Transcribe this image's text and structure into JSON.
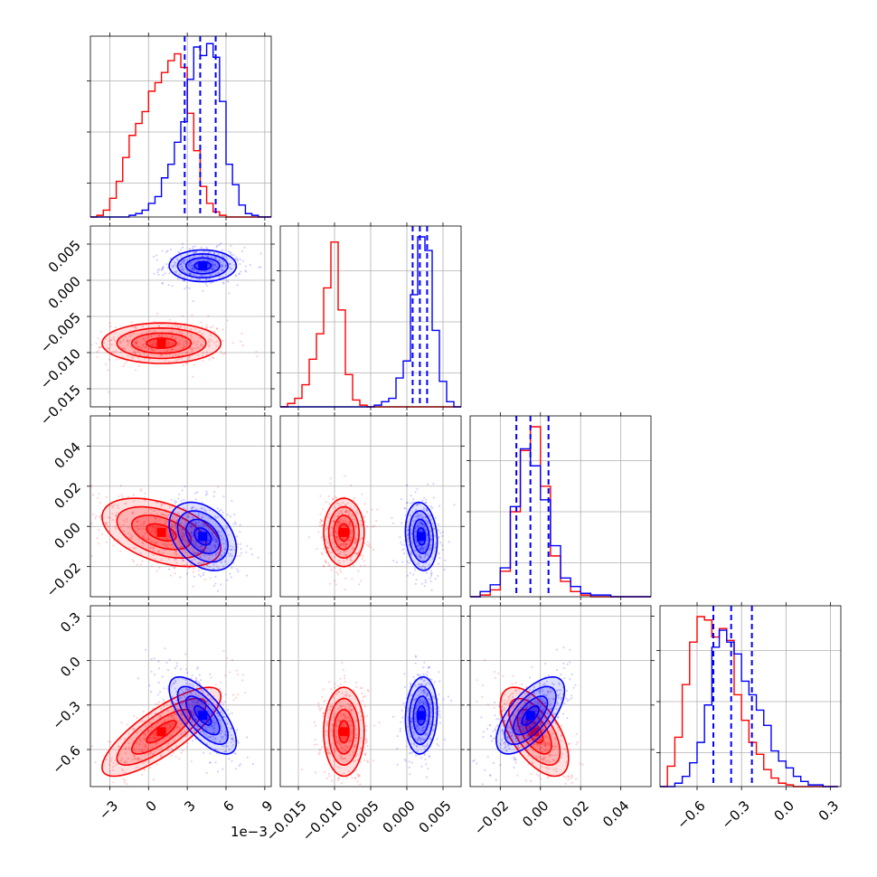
{
  "chart_data": {
    "type": "corner",
    "title": "",
    "parameters": [
      "",
      "",
      "",
      ""
    ],
    "series": [
      {
        "color": "#ff0000"
      },
      {
        "color": "#0000ff"
      }
    ],
    "axes": [
      {
        "range": [
          -4.5,
          9.5
        ],
        "ticks": [
          -3,
          0,
          3,
          6,
          9
        ],
        "tick_labels": [
          "−3",
          "0",
          "3",
          "6",
          "9"
        ],
        "offset_text": "1e−3"
      },
      {
        "range": [
          -0.0175,
          0.0075
        ],
        "ticks": [
          -0.015,
          -0.01,
          -0.005,
          0.0,
          0.005
        ],
        "tick_labels": [
          "−0.015",
          "−0.010",
          "−0.005",
          "0.000",
          "0.005"
        ]
      },
      {
        "range": [
          -0.035,
          0.055
        ],
        "ticks": [
          -0.02,
          0.0,
          0.02,
          0.04
        ],
        "tick_labels": [
          "−0.02",
          "0.00",
          "0.02",
          "0.04"
        ]
      },
      {
        "range": [
          -0.85,
          0.37
        ],
        "ticks": [
          -0.6,
          -0.3,
          0.0,
          0.3
        ],
        "tick_labels": [
          "−0.6",
          "−0.3",
          "0.0",
          "0.3"
        ]
      }
    ],
    "quantiles": [
      [
        2.8,
        4.0,
        5.2
      ],
      [
        0.0008,
        0.0018,
        0.0028
      ],
      [
        -0.012,
        -0.005,
        0.004
      ],
      [
        -0.49,
        -0.37,
        -0.23
      ]
    ],
    "histograms": [
      {
        "red": {
          "edges": [
            -4.5,
            -4,
            -3.5,
            -3,
            -2.5,
            -2,
            -1.5,
            -1,
            -0.5,
            0,
            0.5,
            1,
            1.5,
            2,
            2.5,
            3,
            3.5,
            4,
            4.5,
            5,
            5.5,
            6,
            6.5,
            7,
            7.5,
            8,
            8.5,
            9,
            9.5
          ],
          "counts": [
            0,
            0.01,
            0.04,
            0.11,
            0.21,
            0.35,
            0.48,
            0.55,
            0.62,
            0.74,
            0.79,
            0.85,
            0.92,
            0.96,
            0.88,
            0.61,
            0.39,
            0.18,
            0.08,
            0.03,
            0.01,
            0,
            0,
            0,
            0,
            0,
            0,
            0
          ]
        },
        "blue": {
          "edges": [
            -4.5,
            -4,
            -3.5,
            -3,
            -2.5,
            -2,
            -1.5,
            -1,
            -0.5,
            0,
            0.5,
            1,
            1.5,
            2,
            2.5,
            3,
            3.5,
            4,
            4.5,
            5,
            5.5,
            6,
            6.5,
            7,
            7.5,
            8,
            8.5,
            9,
            9.5
          ],
          "counts": [
            0,
            0,
            0,
            0,
            0,
            0,
            0.01,
            0.02,
            0.04,
            0.08,
            0.12,
            0.23,
            0.31,
            0.44,
            0.56,
            0.81,
            1.0,
            0.95,
            1.02,
            0.94,
            0.68,
            0.31,
            0.19,
            0.07,
            0.02,
            0.01,
            0,
            0
          ]
        }
      },
      {
        "red": {
          "edges": [
            -0.0175,
            -0.0165,
            -0.0155,
            -0.0145,
            -0.0135,
            -0.0125,
            -0.0115,
            -0.0105,
            -0.0095,
            -0.0085,
            -0.0075,
            -0.0065,
            -0.0055,
            -0.0045,
            -0.0035,
            -0.0025,
            -0.0015,
            -0.0005,
            0.0005,
            0.0015,
            0.0025,
            0.0035,
            0.0045,
            0.0055,
            0.0065,
            0.0075
          ],
          "counts": [
            0,
            0.02,
            0.05,
            0.13,
            0.28,
            0.43,
            0.7,
            0.97,
            0.57,
            0.19,
            0.04,
            0.01,
            0,
            0,
            0,
            0,
            0,
            0,
            0,
            0,
            0,
            0,
            0,
            0,
            0
          ]
        },
        "blue": {
          "edges": [
            -0.0175,
            -0.0165,
            -0.0155,
            -0.0145,
            -0.0135,
            -0.0125,
            -0.0115,
            -0.0105,
            -0.0095,
            -0.0085,
            -0.0075,
            -0.0065,
            -0.0055,
            -0.0045,
            -0.0035,
            -0.0025,
            -0.0015,
            -0.0005,
            0.0005,
            0.0015,
            0.0025,
            0.0035,
            0.0045,
            0.0055,
            0.0065,
            0.0075
          ],
          "counts": [
            0,
            0,
            0,
            0,
            0,
            0,
            0,
            0,
            0,
            0,
            0,
            0,
            0,
            0.01,
            0.03,
            0.05,
            0.17,
            0.27,
            0.66,
            1.0,
            0.92,
            0.45,
            0.15,
            0.03,
            0
          ]
        }
      },
      {
        "red": {
          "edges": [
            -0.035,
            -0.03,
            -0.025,
            -0.02,
            -0.015,
            -0.01,
            -0.005,
            0,
            0.005,
            0.01,
            0.015,
            0.02,
            0.025,
            0.03,
            0.035,
            0.04,
            0.045,
            0.05,
            0.055
          ],
          "counts": [
            0,
            0.01,
            0.04,
            0.15,
            0.5,
            0.86,
            1.0,
            0.65,
            0.24,
            0.09,
            0.03,
            0.01,
            0,
            0,
            0,
            0,
            0,
            0
          ]
        },
        "blue": {
          "edges": [
            -0.035,
            -0.03,
            -0.025,
            -0.02,
            -0.015,
            -0.01,
            -0.005,
            0,
            0.005,
            0.01,
            0.015,
            0.02,
            0.025,
            0.03,
            0.035,
            0.04,
            0.045,
            0.05,
            0.055
          ],
          "counts": [
            0,
            0.03,
            0.07,
            0.17,
            0.53,
            0.87,
            0.77,
            0.57,
            0.3,
            0.11,
            0.06,
            0.02,
            0.01,
            0.01,
            0,
            0,
            0,
            0
          ]
        }
      },
      {
        "red": {
          "edges": [
            -0.85,
            -0.8,
            -0.75,
            -0.7,
            -0.65,
            -0.6,
            -0.55,
            -0.5,
            -0.45,
            -0.4,
            -0.35,
            -0.3,
            -0.25,
            -0.2,
            -0.15,
            -0.1,
            -0.05,
            0,
            0.05,
            0.1,
            0.15,
            0.2,
            0.25,
            0.3,
            0.35
          ],
          "counts": [
            0,
            0.12,
            0.29,
            0.6,
            0.85,
            1.0,
            0.98,
            0.88,
            0.93,
            0.86,
            0.54,
            0.39,
            0.26,
            0.19,
            0.1,
            0.05,
            0.02,
            0.01,
            0,
            0,
            0,
            0,
            0,
            0
          ]
        },
        "blue": {
          "edges": [
            -0.85,
            -0.8,
            -0.75,
            -0.7,
            -0.65,
            -0.6,
            -0.55,
            -0.5,
            -0.45,
            -0.4,
            -0.35,
            -0.3,
            -0.25,
            -0.2,
            -0.15,
            -0.1,
            -0.05,
            0,
            0.05,
            0.1,
            0.15,
            0.2,
            0.25,
            0.3,
            0.35
          ],
          "counts": [
            0,
            0,
            0.02,
            0.06,
            0.14,
            0.26,
            0.48,
            0.82,
            0.92,
            0.85,
            0.78,
            0.62,
            0.54,
            0.45,
            0.36,
            0.21,
            0.15,
            0.11,
            0.06,
            0.03,
            0.01,
            0.01,
            0,
            0
          ]
        }
      }
    ],
    "pairs": [
      {
        "x": 0,
        "y": 1,
        "red": {
          "center": [
            1.0,
            -0.0087
          ],
          "sd": [
            2.3,
            0.0014
          ],
          "rho": 0.0
        },
        "blue": {
          "center": [
            4.2,
            0.002
          ],
          "sd": [
            1.3,
            0.0011
          ],
          "rho": 0.0
        }
      },
      {
        "x": 0,
        "y": 2,
        "red": {
          "center": [
            1.0,
            -0.003
          ],
          "sd": [
            2.3,
            0.0085
          ],
          "rho": -0.45
        },
        "blue": {
          "center": [
            4.2,
            -0.005
          ],
          "sd": [
            1.3,
            0.0085
          ],
          "rho": -0.35
        }
      },
      {
        "x": 1,
        "y": 2,
        "red": {
          "center": [
            -0.0087,
            -0.003
          ],
          "sd": [
            0.0014,
            0.0085
          ],
          "rho": 0.0
        },
        "blue": {
          "center": [
            0.002,
            -0.005
          ],
          "sd": [
            0.0011,
            0.0085
          ],
          "rho": -0.15
        }
      },
      {
        "x": 0,
        "y": 3,
        "red": {
          "center": [
            1.0,
            -0.48
          ],
          "sd": [
            2.3,
            0.15
          ],
          "rho": 0.8
        },
        "blue": {
          "center": [
            4.2,
            -0.37
          ],
          "sd": [
            1.3,
            0.13
          ],
          "rho": -0.7
        }
      },
      {
        "x": 1,
        "y": 3,
        "red": {
          "center": [
            -0.0087,
            -0.48
          ],
          "sd": [
            0.0014,
            0.15
          ],
          "rho": 0.0
        },
        "blue": {
          "center": [
            0.002,
            -0.37
          ],
          "sd": [
            0.0011,
            0.13
          ],
          "rho": 0.1
        }
      },
      {
        "x": 2,
        "y": 3,
        "red": {
          "center": [
            -0.003,
            -0.48
          ],
          "sd": [
            0.0085,
            0.15
          ],
          "rho": -0.6
        },
        "blue": {
          "center": [
            -0.005,
            -0.37
          ],
          "sd": [
            0.0085,
            0.13
          ],
          "rho": 0.65
        }
      }
    ]
  }
}
